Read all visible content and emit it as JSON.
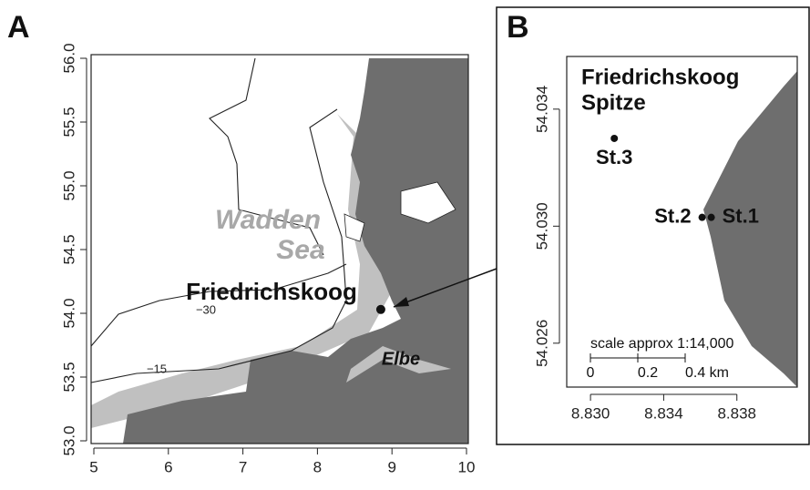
{
  "panel_a": {
    "label": "A",
    "xlim": [
      5,
      10
    ],
    "ylim": [
      53,
      56
    ],
    "xticks": [
      5,
      6,
      7,
      8,
      9,
      10
    ],
    "yticks": [
      {
        "value": 53,
        "label": "53.0"
      },
      {
        "value": 53.5,
        "label": "53.5"
      },
      {
        "value": 54,
        "label": "54.0"
      },
      {
        "value": 54.5,
        "label": "54.5"
      },
      {
        "value": 55,
        "label": "55.0"
      },
      {
        "value": 55.5,
        "label": "55.5"
      },
      {
        "value": 56,
        "label": "56.0"
      }
    ],
    "sea_label": [
      "Wadden",
      "Sea"
    ],
    "place_label": "Friedrichskoog",
    "river_label": "Elbe",
    "contour_labels": [
      "−30",
      "−15"
    ],
    "location": {
      "x": 8.85,
      "y": 54.03
    }
  },
  "panel_b": {
    "label": "B",
    "title": [
      "Friedrichskoog",
      "Spitze"
    ],
    "xlim": [
      8.8287,
      8.8413
    ],
    "ylim": [
      54.0245,
      54.0358
    ],
    "xticks": [
      {
        "value": 8.83,
        "label": "8.830"
      },
      {
        "value": 8.834,
        "label": "8.834"
      },
      {
        "value": 8.838,
        "label": "8.838"
      }
    ],
    "yticks": [
      54.026,
      {
        "value": 54.03,
        "label": "54.030"
      },
      54.034
    ],
    "stations": [
      {
        "name": "St.1",
        "x": 8.8366,
        "y": 54.0303
      },
      {
        "name": "St.2",
        "x": 8.8361,
        "y": 54.0303
      },
      {
        "name": "St.3",
        "x": 8.8313,
        "y": 54.033
      }
    ],
    "scale_title": "scale approx 1:14,000",
    "scale_labels": [
      "0",
      "0.2",
      "0.4 km"
    ]
  }
}
